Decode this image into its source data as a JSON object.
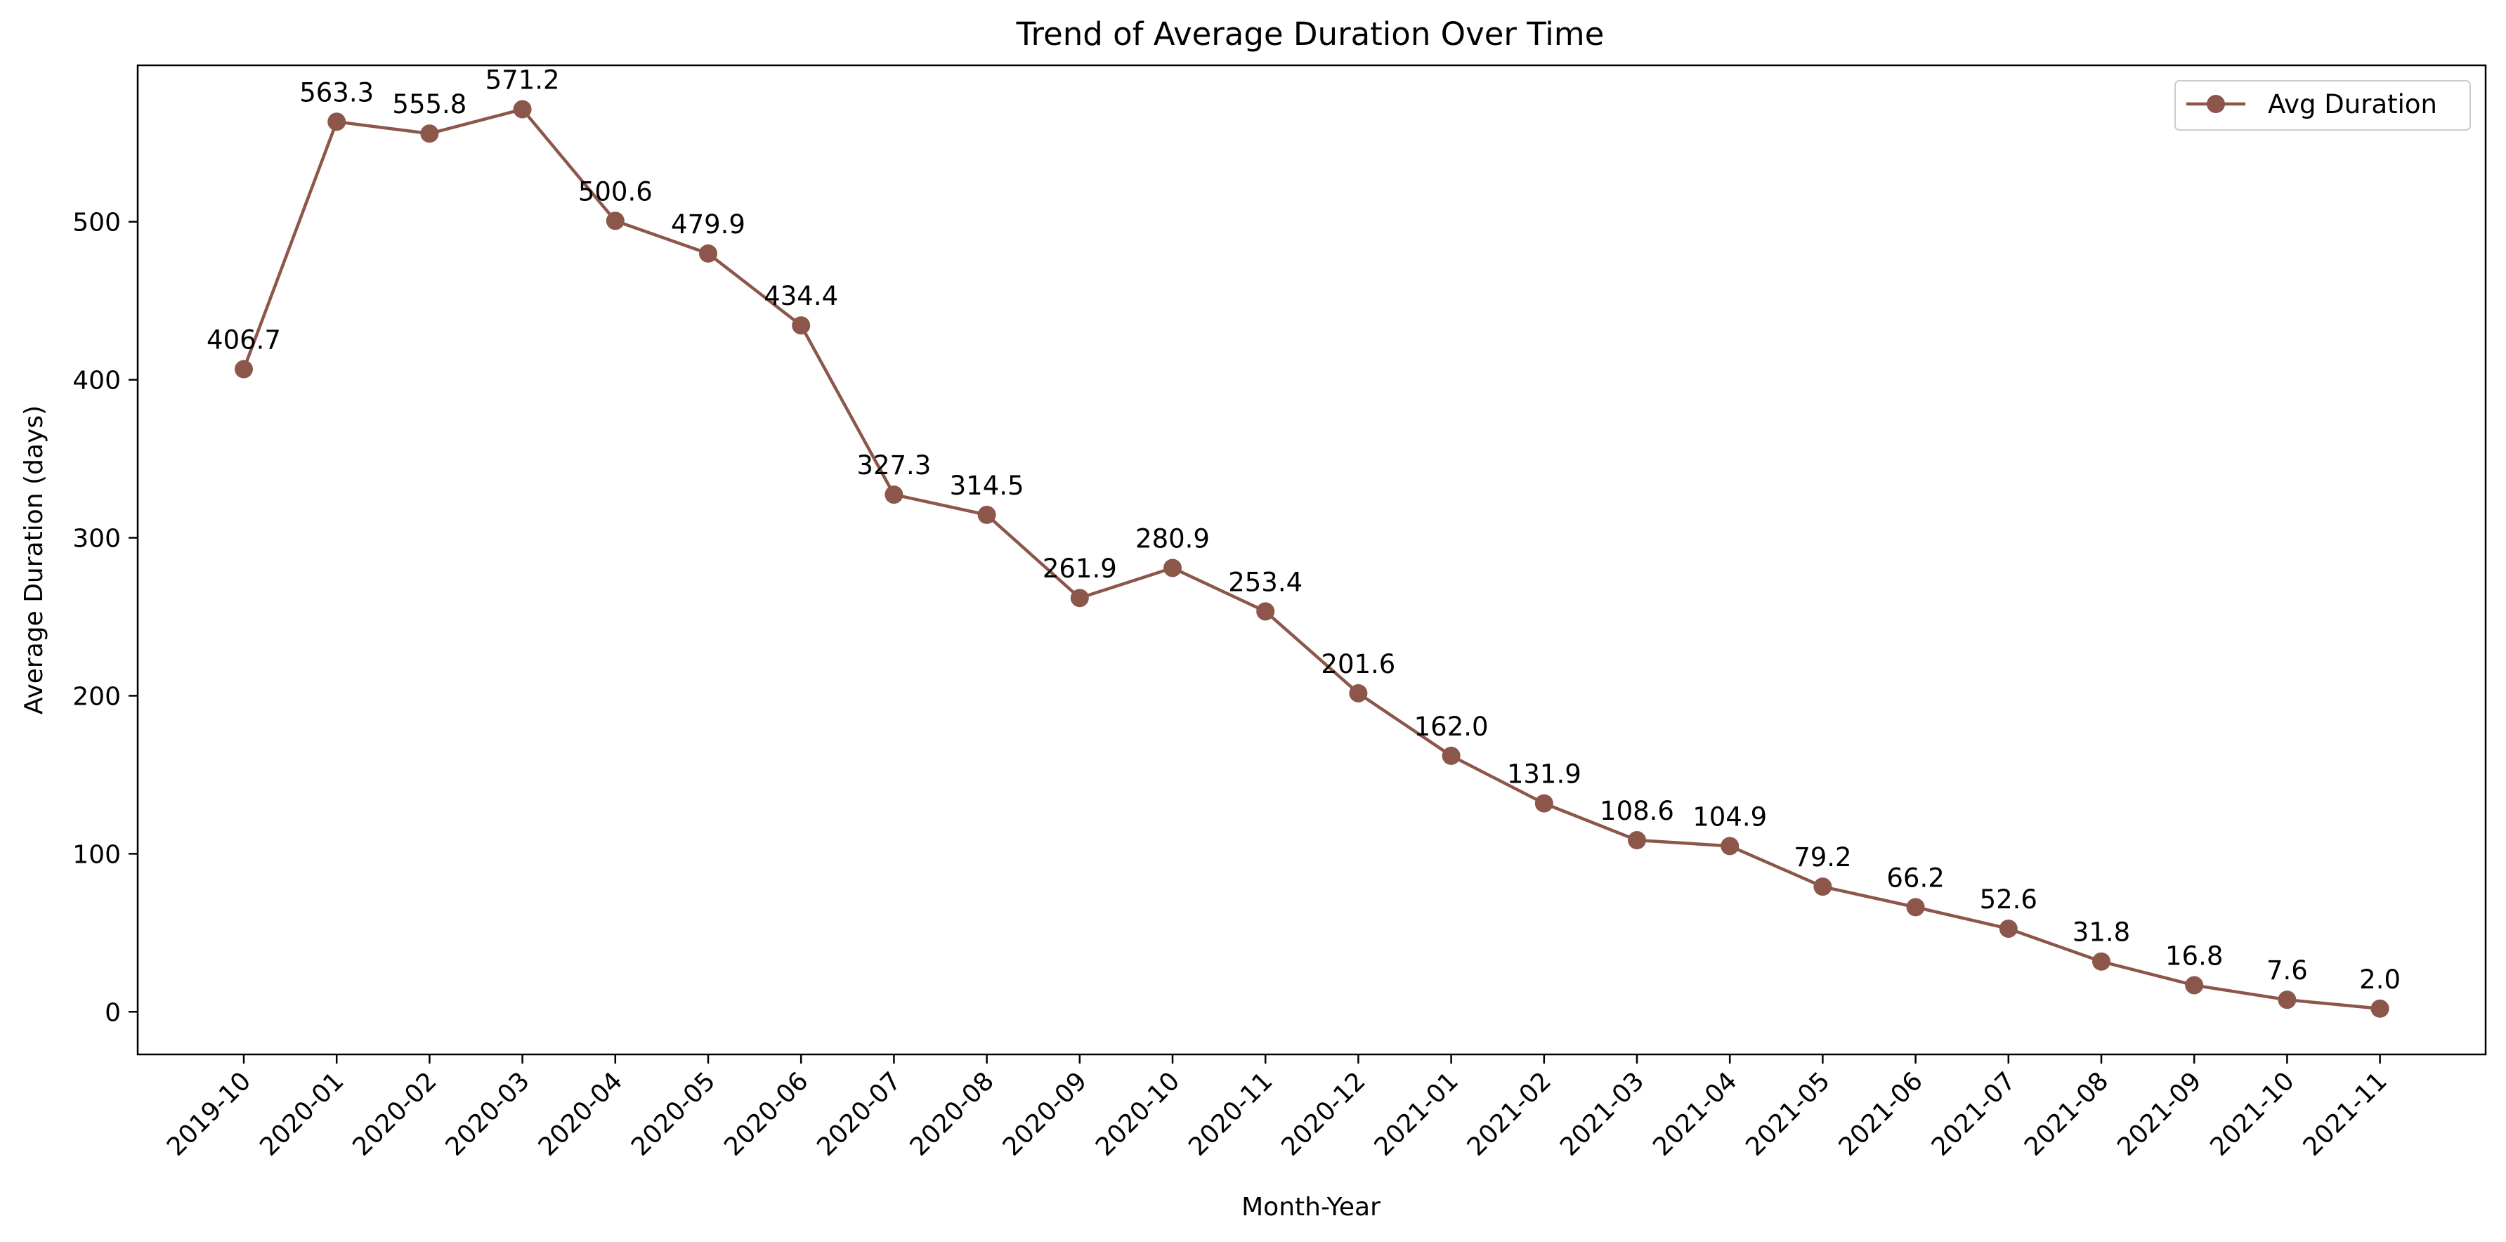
{
  "chart_data": {
    "type": "line",
    "title": "Trend of Average Duration Over Time",
    "xlabel": "Month-Year",
    "ylabel": "Average Duration (days)",
    "categories": [
      "2019-10",
      "2020-01",
      "2020-02",
      "2020-03",
      "2020-04",
      "2020-05",
      "2020-06",
      "2020-07",
      "2020-08",
      "2020-09",
      "2020-10",
      "2020-11",
      "2020-12",
      "2021-01",
      "2021-02",
      "2021-03",
      "2021-04",
      "2021-05",
      "2021-06",
      "2021-07",
      "2021-08",
      "2021-09",
      "2021-10",
      "2021-11"
    ],
    "series": [
      {
        "name": "Avg Duration",
        "color": "#8c564b",
        "marker": "circle",
        "values": [
          406.7,
          563.3,
          555.8,
          571.2,
          500.6,
          479.9,
          434.4,
          327.3,
          314.5,
          261.9,
          280.9,
          253.4,
          201.6,
          162.0,
          131.9,
          108.6,
          104.9,
          79.2,
          66.2,
          52.6,
          31.8,
          16.8,
          7.6,
          2.0
        ]
      }
    ],
    "data_labels": [
      "406.7",
      "563.3",
      "555.8",
      "571.2",
      "500.6",
      "479.9",
      "434.4",
      "327.3",
      "314.5",
      "261.9",
      "280.9",
      "253.4",
      "201.6",
      "162.0",
      "131.9",
      "108.6",
      "104.9",
      "79.2",
      "66.2",
      "52.6",
      "31.8",
      "16.8",
      "7.6",
      "2.0"
    ],
    "yticks": [
      0,
      100,
      200,
      300,
      400,
      500
    ],
    "ylim": [
      -27,
      599
    ],
    "grid": false,
    "legend": {
      "placement": "top-right",
      "entries": [
        "Avg Duration"
      ]
    }
  }
}
